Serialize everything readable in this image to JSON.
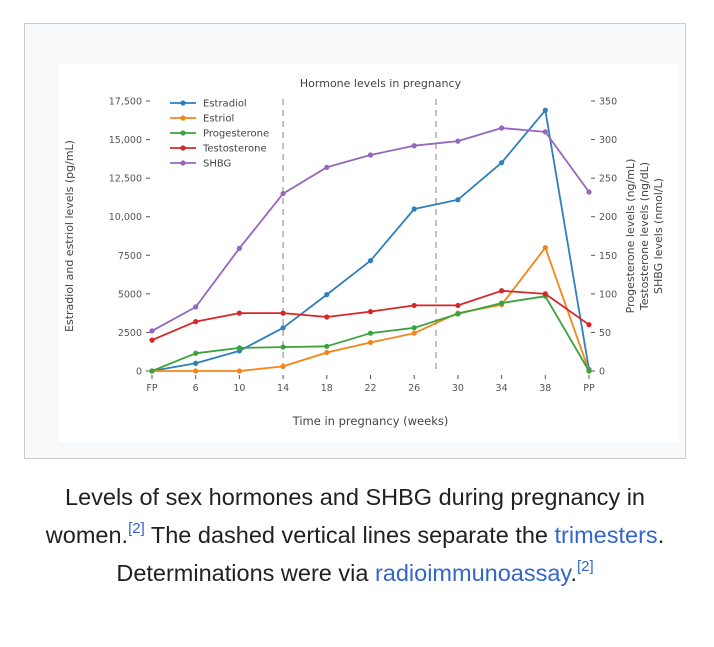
{
  "chart_data": {
    "type": "line",
    "title": "Hormone levels in pregnancy",
    "xlabel": "Time in pregnancy (weeks)",
    "ylabel_left": "Estradiol and estriol levels (pg/mL)",
    "ylabel_right": [
      "Progesterone levels (ng/mL)",
      "Testosterone levels (ng/dL)",
      "SHBG levels (nmol/L)"
    ],
    "x": [
      "FP",
      "6",
      "10",
      "14",
      "18",
      "22",
      "26",
      "30",
      "34",
      "38",
      "PP"
    ],
    "ylim_left": [
      0,
      17500
    ],
    "ylim_right": [
      0,
      350
    ],
    "yticks_left": [
      "0",
      "2500",
      "5000",
      "7500",
      "10,000",
      "12,500",
      "15,000",
      "17,500"
    ],
    "yticks_right": [
      "0",
      "50",
      "100",
      "150",
      "200",
      "250",
      "300",
      "350"
    ],
    "trimester_dividers_after_weeks": [
      14,
      28
    ],
    "grid": false,
    "legend_position": "top-left",
    "series": [
      {
        "name": "Estradiol",
        "axis": "left",
        "color": "#2f7fbc",
        "values": [
          0,
          500,
          1300,
          2800,
          4950,
          7150,
          10500,
          11100,
          13500,
          16900,
          100
        ]
      },
      {
        "name": "Estriol",
        "axis": "left",
        "color": "#f58518",
        "values": [
          0,
          0,
          0,
          300,
          1200,
          1850,
          2450,
          3750,
          4300,
          8000,
          0
        ]
      },
      {
        "name": "Progesterone",
        "axis": "right",
        "color": "#3aa33a",
        "values": [
          0,
          23,
          30,
          31,
          32,
          49,
          56,
          74,
          88,
          97,
          0
        ]
      },
      {
        "name": "Testosterone",
        "axis": "right",
        "color": "#d62728",
        "values": [
          40,
          64,
          75,
          75,
          70,
          77,
          85,
          85,
          104,
          100,
          60
        ]
      },
      {
        "name": "SHBG",
        "axis": "right",
        "color": "#9467bd",
        "values": [
          52,
          83,
          159,
          230,
          264,
          280,
          292,
          298,
          315,
          310,
          232
        ]
      }
    ]
  },
  "caption": {
    "text_before_sup1": "Levels of sex hormones and SHBG during pregnancy in women.",
    "ref1": "[2]",
    "text_mid": " The dashed vertical lines separate the ",
    "link1": "trimesters",
    "text_after_link1": ". Determinations were via ",
    "link2": "radioimmunoassay",
    "text_end": ".",
    "ref2": "[2]"
  }
}
